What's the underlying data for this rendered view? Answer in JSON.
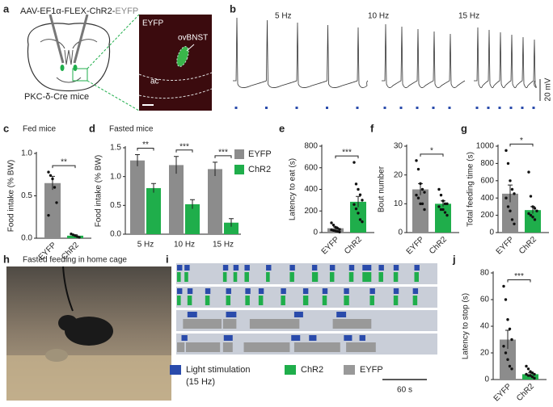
{
  "panel_labels": [
    "a",
    "b",
    "c",
    "d",
    "e",
    "f",
    "g",
    "h",
    "i",
    "j"
  ],
  "schematic": {
    "virus_prefix": "AAV-EF1α-FLEX-ChR2-",
    "virus_reporter": "EYFP",
    "mouse_line": "PKC-δ-Cre mice",
    "image_labels": [
      "EYFP",
      "ovBNST",
      "ac"
    ]
  },
  "traces": {
    "labels": [
      "5 Hz",
      "10 Hz",
      "15 Hz"
    ],
    "scale_label": "20 mV"
  },
  "photo_title": "Fasted feeding in home cage",
  "chart_data": [
    {
      "type": "bar",
      "title": "Fed mice",
      "ylabel": "Food intake (% BW)",
      "categories": [
        "EYFP",
        "ChR2"
      ],
      "values": [
        0.65,
        0.03
      ],
      "errors": [
        0.08,
        0.01
      ],
      "colors": [
        "#8c8c8c",
        "#1fae4b"
      ],
      "points": [
        [
          0.78,
          0.74,
          0.7,
          0.6,
          0.42,
          0.27
        ],
        [
          0.05,
          0.04,
          0.03,
          0.02,
          0.01
        ]
      ],
      "ylim": [
        0,
        1.0
      ],
      "yticks": [
        {
          "value": 0,
          "label": "0.0"
        },
        {
          "value": 0.5,
          "label": "0.5"
        },
        {
          "value": 1,
          "label": "1.0"
        }
      ],
      "significance": "**"
    },
    {
      "type": "grouped_bar",
      "title": "Fasted mice",
      "ylabel": "Food intake (% BW)",
      "categories": [
        "5 Hz",
        "10 Hz",
        "15 Hz"
      ],
      "series": [
        {
          "name": "EYFP",
          "color": "#8c8c8c",
          "values": [
            1.28,
            1.2,
            1.13
          ],
          "errors": [
            0.1,
            0.15,
            0.12
          ]
        },
        {
          "name": "ChR2",
          "color": "#1fae4b",
          "values": [
            0.8,
            0.52,
            0.2
          ],
          "errors": [
            0.08,
            0.08,
            0.07
          ]
        }
      ],
      "ylim": [
        0,
        1.5
      ],
      "yticks": [
        {
          "value": 0,
          "label": "0.0"
        },
        {
          "value": 0.5,
          "label": "0.5"
        },
        {
          "value": 1,
          "label": "1.0"
        },
        {
          "value": 1.5,
          "label": "1.5"
        }
      ],
      "significance": [
        "**",
        "***",
        "***"
      ]
    },
    {
      "type": "bar",
      "ylabel": "Latency to eat (s)",
      "categories": [
        "EYFP",
        "ChR2"
      ],
      "values": [
        40,
        285
      ],
      "errors": [
        12,
        50
      ],
      "colors": [
        "#8c8c8c",
        "#1fae4b"
      ],
      "points": [
        [
          90,
          70,
          50,
          40,
          30,
          25,
          20,
          15,
          10,
          5
        ],
        [
          650,
          450,
          400,
          350,
          300,
          260,
          220,
          180,
          120,
          100
        ]
      ],
      "ylim": [
        0,
        800
      ],
      "yticks": [
        0,
        200,
        400,
        600,
        800
      ],
      "significance": "***"
    },
    {
      "type": "bar",
      "ylabel": "Bout number",
      "categories": [
        "EYFP",
        "ChR2"
      ],
      "values": [
        15,
        10
      ],
      "errors": [
        2,
        1
      ],
      "colors": [
        "#8c8c8c",
        "#1fae4b"
      ],
      "points": [
        [
          25,
          22,
          17,
          15,
          14,
          13,
          12,
          10,
          10,
          8
        ],
        [
          15,
          13,
          11,
          10,
          10,
          9,
          8,
          8,
          7,
          6
        ]
      ],
      "ylim": [
        0,
        30
      ],
      "yticks": [
        0,
        10,
        20,
        30
      ],
      "significance": "*"
    },
    {
      "type": "bar",
      "ylabel": "Total feeding time (s)",
      "categories": [
        "EYFP",
        "ChR2"
      ],
      "values": [
        450,
        260
      ],
      "errors": [
        100,
        40
      ],
      "colors": [
        "#8c8c8c",
        "#1fae4b"
      ],
      "points": [
        [
          950,
          800,
          600,
          500,
          450,
          400,
          300,
          250,
          150,
          100
        ],
        [
          700,
          420,
          300,
          280,
          250,
          220,
          200,
          180,
          150
        ]
      ],
      "ylim": [
        0,
        1000
      ],
      "yticks": [
        0,
        200,
        400,
        600,
        800,
        1000
      ],
      "significance": "*"
    },
    {
      "type": "bar",
      "ylabel": "Latency to stop (s)",
      "categories": [
        "EYFP",
        "ChR2"
      ],
      "values": [
        30,
        4
      ],
      "errors": [
        7,
        1
      ],
      "colors": [
        "#8c8c8c",
        "#1fae4b"
      ],
      "points": [
        [
          70,
          60,
          45,
          38,
          30,
          25,
          20,
          15,
          10,
          8
        ],
        [
          10,
          8,
          6,
          5,
          4,
          4,
          3,
          3,
          2,
          1
        ]
      ],
      "ylim": [
        0,
        80
      ],
      "yticks": [
        0,
        20,
        40,
        60,
        80
      ],
      "significance": "***"
    },
    {
      "type": "raster",
      "xlim": [
        0,
        350
      ],
      "scale_bar": {
        "value": 60,
        "label": "60 s"
      },
      "series": [
        {
          "name": "Light stimulation",
          "note": "(15 Hz)",
          "color": "#2a4bab",
          "values": [
            [
              [
                0,
                7
              ],
              [
                10,
                17
              ],
              [
                62,
                69
              ],
              [
                76,
                83
              ],
              [
                91,
                98
              ],
              [
                120,
                127
              ],
              [
                152,
                159
              ],
              [
                182,
                189
              ],
              [
                206,
                213
              ],
              [
                232,
                239
              ],
              [
                250,
                262
              ],
              [
                272,
                279
              ],
              [
                292,
                299
              ],
              [
                320,
                327
              ]
            ],
            [
              [
                0,
                7
              ],
              [
                14,
                21
              ],
              [
                38,
                45
              ],
              [
                66,
                73
              ],
              [
                92,
                99
              ],
              [
                110,
                117
              ],
              [
                140,
                147
              ],
              [
                170,
                177
              ],
              [
                196,
                203
              ],
              [
                225,
                232
              ],
              [
                260,
                267
              ],
              [
                292,
                299
              ],
              [
                318,
                325
              ]
            ],
            [
              [
                14,
                27
              ],
              [
                66,
                80
              ],
              [
                158,
                170
              ],
              [
                215,
                228
              ]
            ],
            [
              [
                6,
                14
              ],
              [
                63,
                75
              ],
              [
                154,
                166
              ],
              [
                178,
                188
              ],
              [
                225,
                236
              ],
              [
                246,
                254
              ]
            ]
          ]
        },
        {
          "name": "ChR2",
          "color": "#1fae4b",
          "values": [
            [
              [
                0,
                5
              ],
              [
                10,
                15
              ],
              [
                62,
                67
              ],
              [
                76,
                81
              ],
              [
                91,
                97
              ],
              [
                120,
                125
              ],
              [
                152,
                158
              ],
              [
                182,
                190
              ],
              [
                206,
                212
              ],
              [
                232,
                238
              ],
              [
                250,
                262
              ],
              [
                272,
                278
              ],
              [
                292,
                298
              ],
              [
                320,
                326
              ]
            ],
            [
              [
                0,
                5
              ],
              [
                14,
                20
              ],
              [
                38,
                44
              ],
              [
                66,
                72
              ],
              [
                92,
                98
              ],
              [
                110,
                116
              ],
              [
                140,
                146
              ],
              [
                170,
                177
              ],
              [
                196,
                202
              ],
              [
                225,
                232
              ],
              [
                260,
                266
              ],
              [
                292,
                298
              ],
              [
                318,
                324
              ]
            ]
          ]
        },
        {
          "name": "EYFP",
          "color": "#999999",
          "values": [
            [
              [
                8,
                60
              ],
              [
                62,
                80
              ],
              [
                98,
                165
              ],
              [
                210,
                262
              ]
            ],
            [
              [
                0,
                10
              ],
              [
                12,
                58
              ],
              [
                62,
                75
              ],
              [
                90,
                152
              ],
              [
                158,
                220
              ],
              [
                228,
                268
              ]
            ]
          ]
        }
      ]
    }
  ]
}
